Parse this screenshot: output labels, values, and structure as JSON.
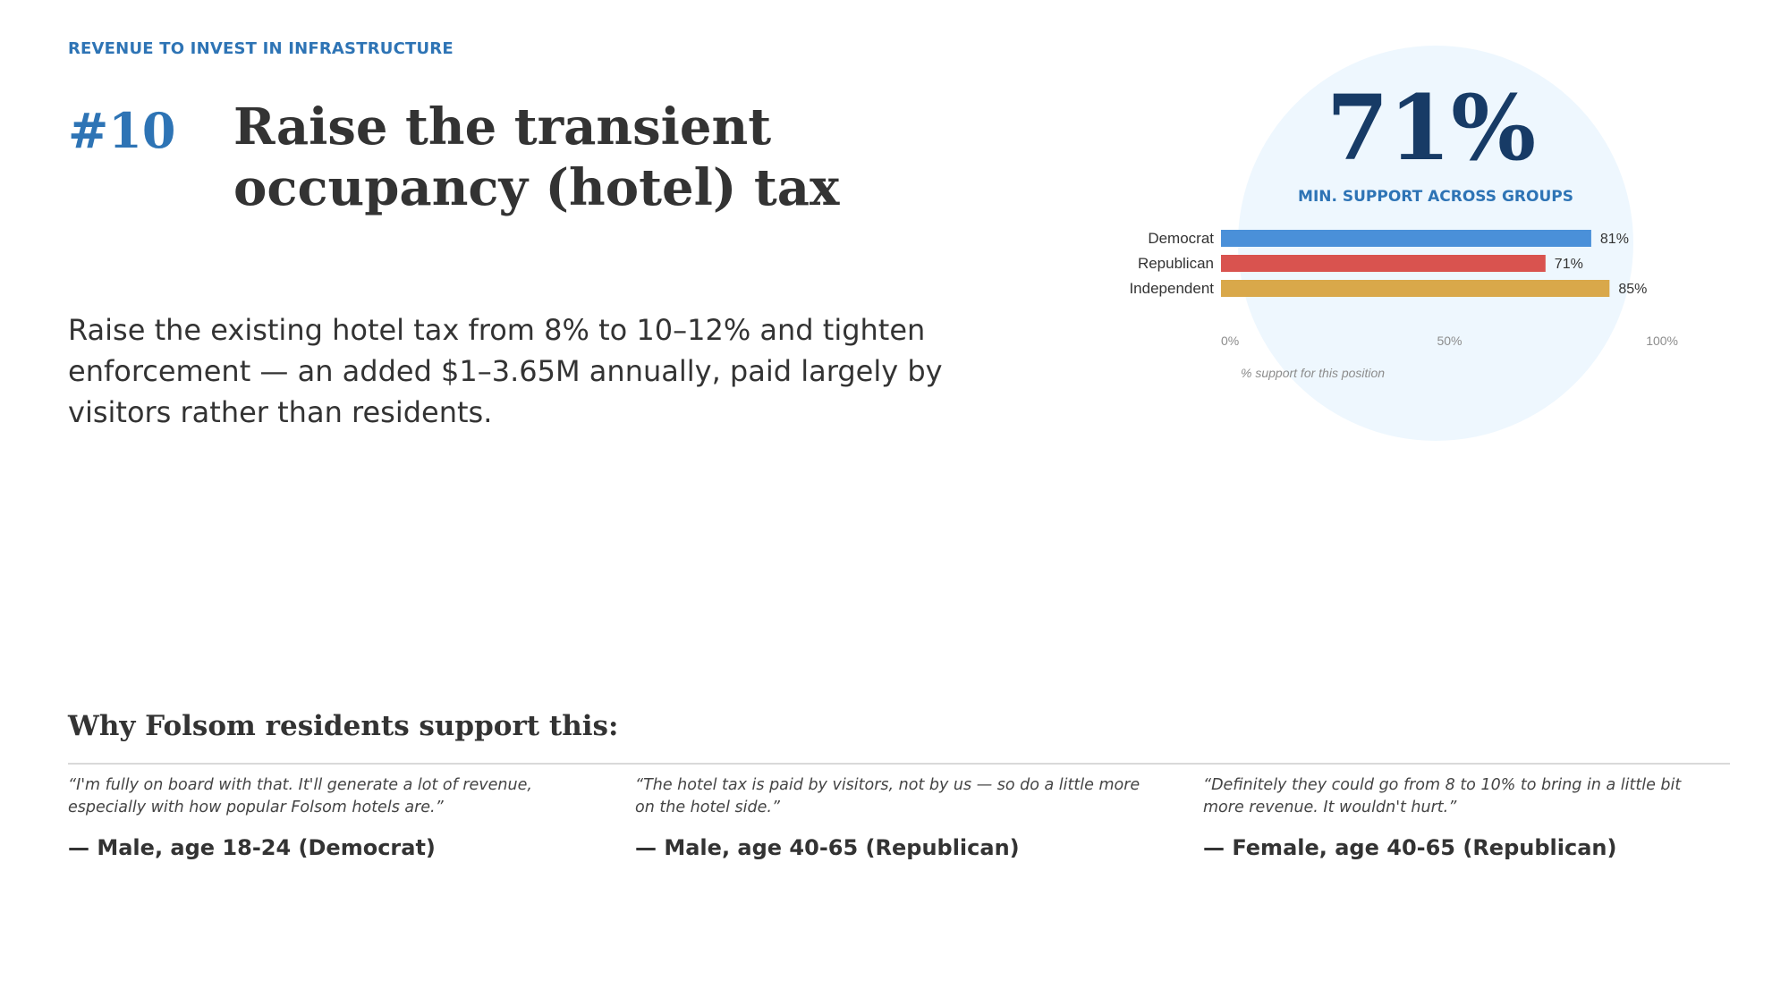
{
  "header": {
    "kicker": "REVENUE TO INVEST IN INFRASTRUCTURE",
    "number": "#10",
    "title": "Raise the transient occupancy (hotel) tax"
  },
  "description": "Raise the existing hotel tax from 8% to 10–12% and tighten enforcement — an added $1–3.65M annually, paid largely by visitors rather than residents.",
  "highlight": {
    "value": "71%",
    "label": "MIN. SUPPORT ACROSS GROUPS"
  },
  "chart_data": {
    "type": "bar",
    "orientation": "horizontal",
    "categories": [
      "Democrat",
      "Republican",
      "Independent"
    ],
    "values": [
      81,
      71,
      85
    ],
    "value_labels": [
      "81%",
      "71%",
      "85%"
    ],
    "colors": [
      "#4a90d9",
      "#d9534f",
      "#d9a84a"
    ],
    "xlim": [
      0,
      100
    ],
    "x_ticks": [
      "0%",
      "50%",
      "100%"
    ],
    "x_tick_values": [
      0,
      50,
      100
    ],
    "xlabel": "% support for this position",
    "grid": false
  },
  "why": {
    "heading": "Why Folsom residents support this:",
    "quotes": [
      {
        "text": "“I'm fully on board with that. It'll generate a lot of revenue, especially with how popular Folsom hotels are.”",
        "attribution": "— Male, age 18-24 (Democrat)"
      },
      {
        "text": "“The hotel tax is paid by visitors, not by us — so do a little more on the hotel side.”",
        "attribution": "— Male, age 40-65 (Republican)"
      },
      {
        "text": "“Definitely they could go from 8 to 10% to bring in a little bit more revenue. It wouldn't hurt.”",
        "attribution": "— Female, age 40-65 (Republican)"
      }
    ]
  }
}
